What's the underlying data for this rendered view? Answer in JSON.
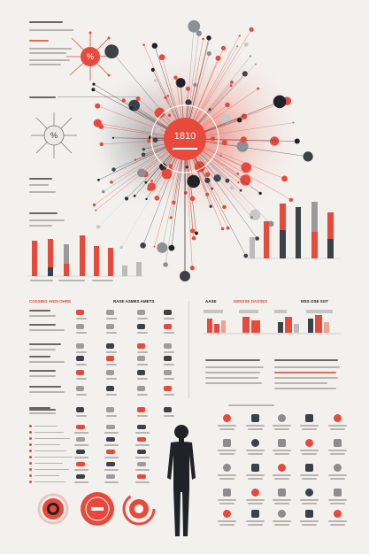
{
  "burst": {
    "center_value": "1810"
  },
  "left_badge": {
    "value": "%"
  },
  "mid_badge": {
    "value": "%"
  },
  "section_headers": {
    "left": "COSSING ANDI OHRE",
    "mid": "RASE ASMES AMETS",
    "right_a": "AASE",
    "right_b": "DENSSE DASSES",
    "right_c": "MSS OSE SOT"
  },
  "colors": {
    "accent": "#e8493a",
    "dark": "#3c4148",
    "gray": "#8c8c8c",
    "background": "#f3f1ee"
  },
  "icons": [
    "camera-icon",
    "phone-icon",
    "card-icon",
    "globe-icon",
    "lock-icon",
    "mail-icon",
    "cloud-icon",
    "chart-icon"
  ]
}
